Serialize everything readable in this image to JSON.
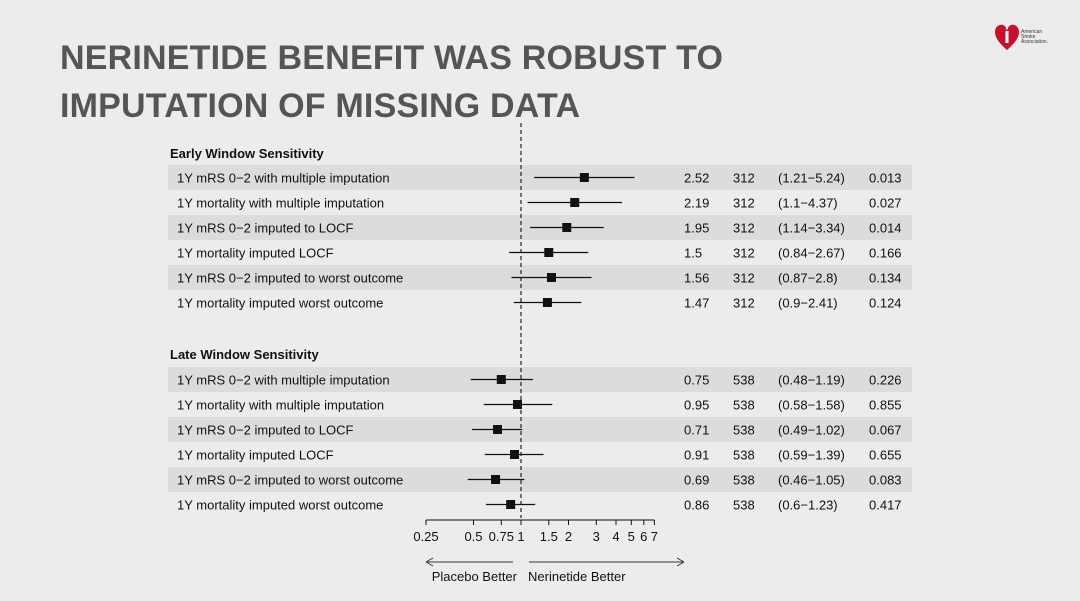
{
  "slide": {
    "title_line1": "NERINETIDE BENEFIT WAS ROBUST TO",
    "title_line2": "IMPUTATION OF MISSING DATA",
    "logo_text": [
      "American",
      "Stroke",
      "Association."
    ],
    "accent_color": "#c8102e"
  },
  "chart_data": {
    "type": "forest",
    "x_scale": "log",
    "xlim": [
      0.25,
      7
    ],
    "reference_line": 1,
    "reference_style": "dashed",
    "x_ticks": [
      0.25,
      0.5,
      0.75,
      1,
      1.5,
      2,
      3,
      4,
      5,
      6,
      7
    ],
    "x_tick_labels": [
      "0.25",
      "0.5",
      "0.75",
      "1",
      "1.5",
      "2",
      "3",
      "4",
      "5",
      "6",
      "7"
    ],
    "left_arrow_label": "Placebo Better",
    "right_arrow_label": "Nerinetide Better",
    "sections": [
      {
        "title": "Early Window Sensitivity",
        "rows": [
          {
            "label": "1Y mRS 0−2 with multiple imputation",
            "estimate": 2.52,
            "n": "312",
            "lower": 1.21,
            "upper": 5.24,
            "ci": "(1.21−5.24)",
            "p": "0.013",
            "est_text": "2.52"
          },
          {
            "label": "1Y mortality with multiple imputation",
            "estimate": 2.19,
            "n": "312",
            "lower": 1.1,
            "upper": 4.37,
            "ci": "(1.1−4.37)",
            "p": "0.027",
            "est_text": "2.19"
          },
          {
            "label": "1Y mRS 0−2 imputed to LOCF",
            "estimate": 1.95,
            "n": "312",
            "lower": 1.14,
            "upper": 3.34,
            "ci": "(1.14−3.34)",
            "p": "0.014",
            "est_text": "1.95"
          },
          {
            "label": "1Y mortality imputed LOCF",
            "estimate": 1.5,
            "n": "312",
            "lower": 0.84,
            "upper": 2.67,
            "ci": "(0.84−2.67)",
            "p": "0.166",
            "est_text": "1.5"
          },
          {
            "label": "1Y mRS 0−2 imputed to worst outcome",
            "estimate": 1.56,
            "n": "312",
            "lower": 0.87,
            "upper": 2.8,
            "ci": "(0.87−2.8)",
            "p": "0.134",
            "est_text": "1.56"
          },
          {
            "label": "1Y mortality imputed worst outcome",
            "estimate": 1.47,
            "n": "312",
            "lower": 0.9,
            "upper": 2.41,
            "ci": "(0.9−2.41)",
            "p": "0.124",
            "est_text": "1.47"
          }
        ]
      },
      {
        "title": "Late Window Sensitivity",
        "rows": [
          {
            "label": "1Y mRS 0−2 with multiple imputation",
            "estimate": 0.75,
            "n": "538",
            "lower": 0.48,
            "upper": 1.19,
            "ci": "(0.48−1.19)",
            "p": "0.226",
            "est_text": "0.75"
          },
          {
            "label": "1Y mortality with multiple imputation",
            "estimate": 0.95,
            "n": "538",
            "lower": 0.58,
            "upper": 1.58,
            "ci": "(0.58−1.58)",
            "p": "0.855",
            "est_text": "0.95"
          },
          {
            "label": "1Y mRS 0−2 imputed to LOCF",
            "estimate": 0.71,
            "n": "538",
            "lower": 0.49,
            "upper": 1.02,
            "ci": "(0.49−1.02)",
            "p": "0.067",
            "est_text": "0.71"
          },
          {
            "label": "1Y mortality imputed LOCF",
            "estimate": 0.91,
            "n": "538",
            "lower": 0.59,
            "upper": 1.39,
            "ci": "(0.59−1.39)",
            "p": "0.655",
            "est_text": "0.91"
          },
          {
            "label": "1Y mRS 0−2 imputed to worst outcome",
            "estimate": 0.69,
            "n": "538",
            "lower": 0.46,
            "upper": 1.05,
            "ci": "(0.46−1.05)",
            "p": "0.083",
            "est_text": "0.69"
          },
          {
            "label": "1Y mortality imputed worst outcome",
            "estimate": 0.86,
            "n": "538",
            "lower": 0.6,
            "upper": 1.23,
            "ci": "(0.6−1.23)",
            "p": "0.417",
            "est_text": "0.86"
          }
        ]
      }
    ]
  }
}
